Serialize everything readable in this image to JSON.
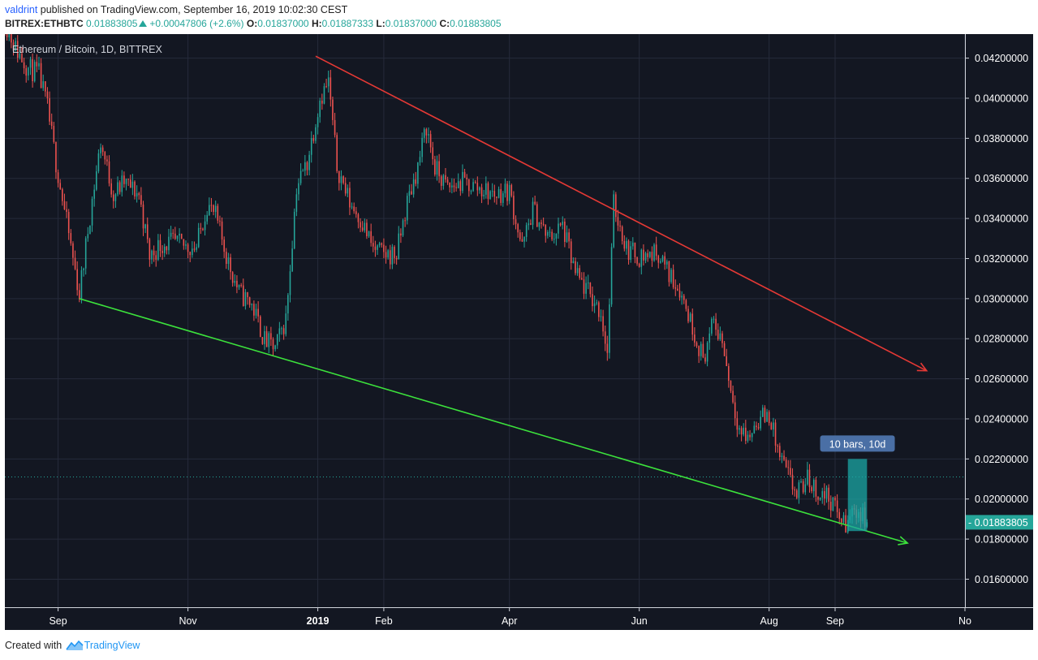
{
  "header": {
    "user": "valdrint",
    "published": " published on TradingView.com, September 16, 2019 10:02:30 CEST",
    "symbol": "BITREX:ETHBTC",
    "last": "0.01883805",
    "change": "+0.00047806 (+2.6%)",
    "o_label": "O:",
    "o_value": "0.01837000",
    "h_label": "H:",
    "h_value": "0.01887333",
    "l_label": "L:",
    "l_value": "0.01837000",
    "c_label": "C:",
    "c_value": "0.01883805"
  },
  "footer": {
    "created_with": "Created with",
    "brand": "TradingView"
  },
  "colors": {
    "background": "#131722",
    "grid": "#262b3b",
    "up": "#26a69a",
    "down": "#ef5350",
    "resistance_line": "#e53935",
    "support_line": "#3ce23c",
    "axis_text": "#ffffff",
    "price_badge": "#26a69a",
    "range_box": "#1ba7a4",
    "range_label_bg": "#4a6fa5"
  },
  "chart_data": {
    "type": "candlestick",
    "title": "Ethereum / Bitcoin, 1D, BITTREX",
    "y_axis": {
      "ticks": [
        "0.01600000",
        "0.01800000",
        "0.02000000",
        "0.02200000",
        "0.02400000",
        "0.02600000",
        "0.02800000",
        "0.03000000",
        "0.03200000",
        "0.03400000",
        "0.03600000",
        "0.03800000",
        "0.04000000",
        "0.04200000"
      ],
      "range": [
        0.0146,
        0.0432
      ]
    },
    "x_axis": {
      "ticks": [
        {
          "label": "Sep",
          "date": "2018-09-01"
        },
        {
          "label": "Nov",
          "date": "2018-11-01"
        },
        {
          "label": "2019",
          "date": "2019-01-01",
          "bold": true
        },
        {
          "label": "Feb",
          "date": "2019-02-01"
        },
        {
          "label": "Apr",
          "date": "2019-04-01"
        },
        {
          "label": "Jun",
          "date": "2019-06-01"
        },
        {
          "label": "Aug",
          "date": "2019-08-01"
        },
        {
          "label": "Sep",
          "date": "2019-09-01"
        },
        {
          "label": "No",
          "date": "2019-11-01"
        }
      ],
      "range": [
        "2018-08-07",
        "2019-11-01"
      ]
    },
    "last_price": "0.01883805",
    "close_path": [
      [
        "2018-08-07",
        0.0438
      ],
      [
        "2018-08-12",
        0.0425
      ],
      [
        "2018-08-18",
        0.0415
      ],
      [
        "2018-08-23",
        0.0412
      ],
      [
        "2018-08-27",
        0.0395
      ],
      [
        "2018-08-31",
        0.0368
      ],
      [
        "2018-09-05",
        0.0338
      ],
      [
        "2018-09-11",
        0.0302
      ],
      [
        "2018-09-16",
        0.0342
      ],
      [
        "2018-09-21",
        0.0378
      ],
      [
        "2018-09-27",
        0.0352
      ],
      [
        "2018-10-02",
        0.0358
      ],
      [
        "2018-10-09",
        0.0352
      ],
      [
        "2018-10-14",
        0.0321
      ],
      [
        "2018-10-19",
        0.0327
      ],
      [
        "2018-10-25",
        0.0328
      ],
      [
        "2018-10-31",
        0.0326
      ],
      [
        "2018-11-05",
        0.0326
      ],
      [
        "2018-11-10",
        0.0347
      ],
      [
        "2018-11-14",
        0.0341
      ],
      [
        "2018-11-20",
        0.0318
      ],
      [
        "2018-11-25",
        0.0303
      ],
      [
        "2018-12-01",
        0.0297
      ],
      [
        "2018-12-07",
        0.0279
      ],
      [
        "2018-12-12",
        0.0275
      ],
      [
        "2018-12-17",
        0.029
      ],
      [
        "2018-12-22",
        0.0356
      ],
      [
        "2018-12-27",
        0.0368
      ],
      [
        "2019-01-02",
        0.04
      ],
      [
        "2019-01-06",
        0.0408
      ],
      [
        "2019-01-10",
        0.0366
      ],
      [
        "2019-01-16",
        0.0348
      ],
      [
        "2019-01-21",
        0.034
      ],
      [
        "2019-01-27",
        0.0325
      ],
      [
        "2019-02-01",
        0.0322
      ],
      [
        "2019-02-07",
        0.0322
      ],
      [
        "2019-02-12",
        0.0348
      ],
      [
        "2019-02-17",
        0.0366
      ],
      [
        "2019-02-21",
        0.0386
      ],
      [
        "2019-02-25",
        0.0365
      ],
      [
        "2019-03-03",
        0.0355
      ],
      [
        "2019-03-10",
        0.0358
      ],
      [
        "2019-03-18",
        0.0355
      ],
      [
        "2019-03-25",
        0.0352
      ],
      [
        "2019-04-01",
        0.0354
      ],
      [
        "2019-04-07",
        0.0325
      ],
      [
        "2019-04-12",
        0.0345
      ],
      [
        "2019-04-19",
        0.033
      ],
      [
        "2019-04-26",
        0.0336
      ],
      [
        "2019-05-02",
        0.0312
      ],
      [
        "2019-05-08",
        0.0303
      ],
      [
        "2019-05-14",
        0.0293
      ],
      [
        "2019-05-17",
        0.0273
      ],
      [
        "2019-05-20",
        0.0347
      ],
      [
        "2019-05-26",
        0.0325
      ],
      [
        "2019-06-01",
        0.0321
      ],
      [
        "2019-06-06",
        0.0322
      ],
      [
        "2019-06-10",
        0.0323
      ],
      [
        "2019-06-14",
        0.0314
      ],
      [
        "2019-06-20",
        0.0305
      ],
      [
        "2019-06-26",
        0.0286
      ],
      [
        "2019-07-01",
        0.027
      ],
      [
        "2019-07-06",
        0.0288
      ],
      [
        "2019-07-10",
        0.0279
      ],
      [
        "2019-07-14",
        0.0255
      ],
      [
        "2019-07-18",
        0.0235
      ],
      [
        "2019-07-22",
        0.023
      ],
      [
        "2019-07-27",
        0.024
      ],
      [
        "2019-08-01",
        0.0242
      ],
      [
        "2019-08-05",
        0.0224
      ],
      [
        "2019-08-10",
        0.0211
      ],
      [
        "2019-08-14",
        0.0202
      ],
      [
        "2019-08-19",
        0.021
      ],
      [
        "2019-08-24",
        0.0203
      ],
      [
        "2019-08-29",
        0.0201
      ],
      [
        "2019-09-02",
        0.0193
      ],
      [
        "2019-09-06",
        0.0186
      ],
      [
        "2019-09-10",
        0.0196
      ],
      [
        "2019-09-16",
        0.01883805
      ]
    ],
    "trendlines": [
      {
        "role": "resistance",
        "from": [
          "2018-12-31",
          0.0421
        ],
        "to": [
          "2019-10-14",
          0.0264
        ],
        "arrow": true
      },
      {
        "role": "support",
        "from": [
          "2018-09-11",
          0.03
        ],
        "to": [
          "2019-10-05",
          0.0178
        ],
        "arrow": true
      }
    ],
    "horizontal_dotted": 0.0211,
    "date_range": {
      "from": "2019-09-07",
      "to": "2019-09-16",
      "y_from": 0.0184,
      "y_to": 0.022,
      "label": "10 bars, 10d"
    }
  }
}
